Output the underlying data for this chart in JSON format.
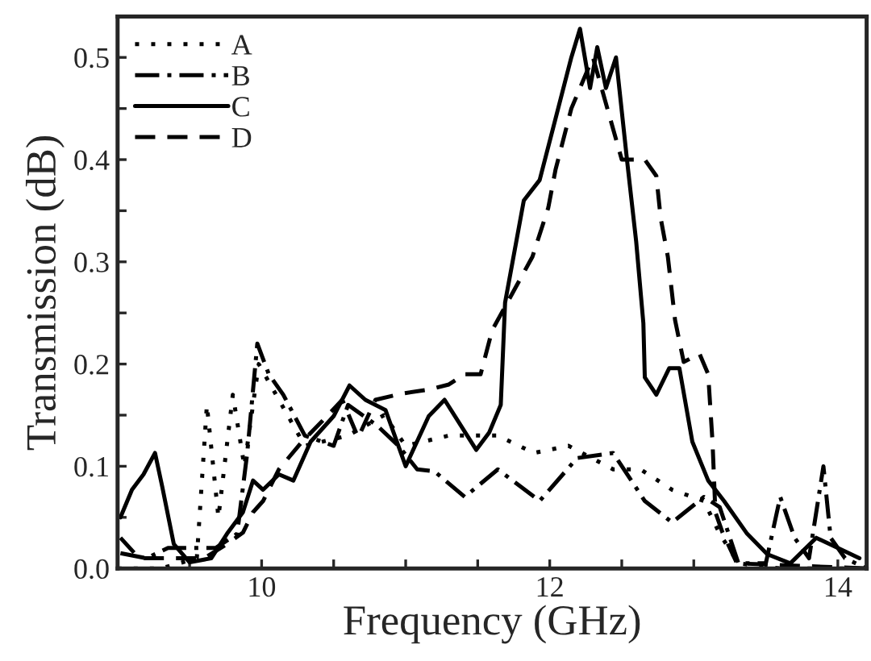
{
  "chart_data": {
    "type": "line",
    "xlabel": "Frequency (GHz)",
    "ylabel": "Transmission (dB)",
    "xlim": [
      9.0,
      14.2
    ],
    "ylim": [
      0.0,
      0.54
    ],
    "xticks": [
      {
        "value": 9.5,
        "label": null
      },
      10,
      {
        "value": 10.5,
        "label": null
      },
      {
        "value": 11,
        "label": null
      },
      {
        "value": 11.5,
        "label": null
      },
      12,
      {
        "value": 12.5,
        "label": null
      },
      {
        "value": 13,
        "label": null
      },
      {
        "value": 13.5,
        "label": null
      },
      14
    ],
    "yticks": [
      {
        "value": 0,
        "label": "0.0"
      },
      {
        "value": 0.05,
        "label": null
      },
      0.1,
      {
        "value": 0.15,
        "label": null
      },
      0.2,
      {
        "value": 0.25,
        "label": null
      },
      0.3,
      {
        "value": 0.35,
        "label": null
      },
      0.4,
      {
        "value": 0.45,
        "label": null
      },
      0.5
    ],
    "grid": false,
    "legend": "top left",
    "marker": "none",
    "series": [
      {
        "name": "A",
        "color": "#000000",
        "line_style": "dotted",
        "x": [
          9.0,
          9.3,
          9.55,
          9.62,
          9.7,
          9.8,
          9.88,
          9.98,
          10.1,
          10.3,
          10.6,
          10.85,
          11.0,
          11.3,
          11.64,
          11.89,
          12.13,
          12.44,
          12.63,
          12.85,
          13.07,
          13.18,
          13.31,
          13.6,
          14.2
        ],
        "values": [
          0.0,
          0.0,
          0.01,
          0.16,
          0.05,
          0.17,
          0.1,
          0.2,
          0.17,
          0.12,
          0.13,
          0.15,
          0.12,
          0.13,
          0.13,
          0.113,
          0.12,
          0.097,
          0.097,
          0.077,
          0.066,
          0.034,
          0.005,
          0.0,
          0.0
        ]
      },
      {
        "name": "B",
        "color": "#000000",
        "line_style": "dashdot",
        "x": [
          9.02,
          9.2,
          9.35,
          9.68,
          9.83,
          9.9,
          9.97,
          10.05,
          10.15,
          10.3,
          10.5,
          10.6,
          10.8,
          10.95,
          11.08,
          11.2,
          11.41,
          11.64,
          11.93,
          12.19,
          12.44,
          12.66,
          12.85,
          13.07,
          13.18,
          13.31,
          13.5,
          13.6,
          13.7,
          13.8,
          13.9,
          13.95,
          14.05,
          14.2
        ],
        "values": [
          0.015,
          0.01,
          0.02,
          0.02,
          0.034,
          0.113,
          0.22,
          0.19,
          0.17,
          0.13,
          0.12,
          0.16,
          0.14,
          0.12,
          0.097,
          0.095,
          0.07,
          0.097,
          0.066,
          0.108,
          0.113,
          0.066,
          0.045,
          0.07,
          0.06,
          0.005,
          0.005,
          0.07,
          0.03,
          0.01,
          0.1,
          0.03,
          0.01,
          0.0
        ]
      },
      {
        "name": "C",
        "color": "#000000",
        "line_style": "solid",
        "x": [
          9.02,
          9.1,
          9.18,
          9.26,
          9.31,
          9.39,
          9.5,
          9.65,
          9.76,
          9.87,
          9.94,
          10.01,
          10.12,
          10.22,
          10.34,
          10.5,
          10.61,
          10.72,
          10.86,
          11.0,
          11.16,
          11.27,
          11.49,
          11.58,
          11.66,
          11.69,
          11.82,
          11.93,
          12.04,
          12.15,
          12.21,
          12.28,
          12.33,
          12.39,
          12.46,
          12.54,
          12.6,
          12.65,
          12.66,
          12.74,
          12.83,
          12.9,
          12.99,
          13.1,
          13.21,
          13.37,
          13.51,
          13.67,
          13.85,
          14.0,
          14.15
        ],
        "values": [
          0.05,
          0.077,
          0.092,
          0.113,
          0.08,
          0.024,
          0.006,
          0.01,
          0.034,
          0.055,
          0.086,
          0.077,
          0.092,
          0.086,
          0.124,
          0.149,
          0.179,
          0.165,
          0.155,
          0.1,
          0.149,
          0.165,
          0.116,
          0.133,
          0.16,
          0.26,
          0.36,
          0.38,
          0.44,
          0.5,
          0.528,
          0.47,
          0.51,
          0.47,
          0.5,
          0.395,
          0.32,
          0.24,
          0.187,
          0.17,
          0.196,
          0.196,
          0.124,
          0.086,
          0.066,
          0.034,
          0.014,
          0.005,
          0.03,
          0.02,
          0.01
        ]
      },
      {
        "name": "D",
        "color": "#000000",
        "line_style": "dashed",
        "x": [
          9.02,
          9.15,
          9.3,
          9.6,
          9.76,
          9.87,
          9.94,
          10.01,
          10.12,
          10.28,
          10.42,
          10.56,
          10.67,
          10.79,
          10.97,
          11.16,
          11.3,
          11.41,
          11.52,
          11.6,
          11.88,
          11.99,
          12.04,
          12.15,
          12.3,
          12.44,
          12.5,
          12.66,
          12.74,
          12.77,
          12.82,
          12.87,
          12.93,
          13.04,
          13.1,
          13.13,
          13.15,
          13.2,
          13.3,
          14.2
        ],
        "values": [
          0.03,
          0.01,
          0.01,
          0.01,
          0.024,
          0.035,
          0.055,
          0.066,
          0.097,
          0.124,
          0.144,
          0.165,
          0.128,
          0.165,
          0.171,
          0.175,
          0.18,
          0.19,
          0.19,
          0.233,
          0.305,
          0.353,
          0.39,
          0.45,
          0.5,
          0.43,
          0.4,
          0.4,
          0.384,
          0.343,
          0.305,
          0.243,
          0.202,
          0.21,
          0.19,
          0.124,
          0.055,
          0.035,
          0.005,
          0.0
        ]
      }
    ]
  }
}
